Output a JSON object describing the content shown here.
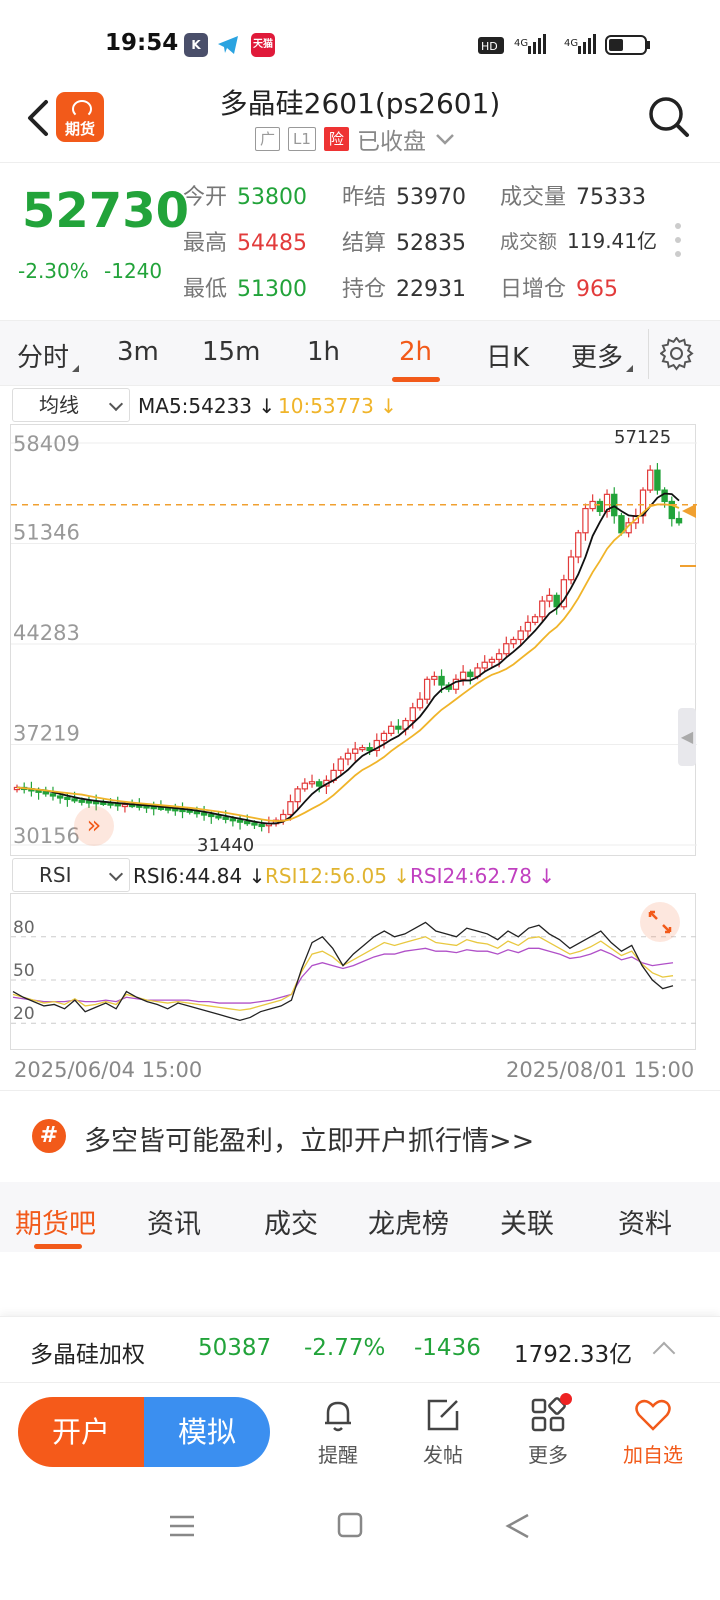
{
  "status_bar": {
    "time": "19:54",
    "app_icons": [
      "K",
      "telegram-icon",
      "天猫"
    ],
    "net": [
      "HD",
      "4G",
      "4G"
    ]
  },
  "header": {
    "title": "多晶硅2601(ps2601)",
    "tags": [
      "广",
      "L1",
      "险"
    ],
    "market_status": "已收盘"
  },
  "quote": {
    "price": "52730",
    "change_pct": "-2.30%",
    "change": "-1240",
    "fields": [
      {
        "k": "今开",
        "v": "53800",
        "c": "g"
      },
      {
        "k": "昨结",
        "v": "53970",
        "c": "dk"
      },
      {
        "k": "成交量",
        "v": "75333",
        "c": "dk"
      },
      {
        "k": "最高",
        "v": "54485",
        "c": "r"
      },
      {
        "k": "结算",
        "v": "52835",
        "c": "dk"
      },
      {
        "k": "成交额",
        "v": "119.41亿",
        "c": "dk"
      },
      {
        "k": "最低",
        "v": "51300",
        "c": "g"
      },
      {
        "k": "持仓",
        "v": "22931",
        "c": "dk"
      },
      {
        "k": "日增仓",
        "v": "965",
        "c": "r"
      }
    ]
  },
  "period_tabs": [
    "分时",
    "3m",
    "15m",
    "1h",
    "2h",
    "日K",
    "更多"
  ],
  "active_period": "2h",
  "main_indicator": {
    "select": "均线",
    "ma5": "MA5:54233",
    "ma10": "10:53773"
  },
  "sub_indicator": {
    "select": "RSI",
    "rsi6": "RSI6:44.84",
    "rsi12": "RSI12:56.05",
    "rsi24": "RSI24:62.78"
  },
  "colors": {
    "up": "#e23b3b",
    "down": "#22a33a",
    "ma5": "#111111",
    "ma10": "#f0b429",
    "rsi6": "#222222",
    "rsi12": "#e8c840",
    "rsi24": "#b050c8",
    "accent": "#f25a1a"
  },
  "chart_data": {
    "type": "candlestick",
    "y_ticks": [
      "58409",
      "51346",
      "44283",
      "37219",
      "30156"
    ],
    "ylim": [
      30156,
      58409
    ],
    "high_label": "57125",
    "low_label": "31440",
    "x_start": "2025/06/04 15:00",
    "x_end": "2025/08/01 15:00",
    "close": [
      34200,
      34100,
      34000,
      33900,
      33750,
      33600,
      33500,
      33400,
      33300,
      33250,
      33200,
      33150,
      33100,
      33050,
      33000,
      33000,
      32950,
      32900,
      32850,
      32800,
      32750,
      32700,
      32650,
      32600,
      32500,
      32400,
      32300,
      32200,
      32100,
      32000,
      31900,
      31800,
      31700,
      31600,
      31550,
      31650,
      31900,
      32300,
      33200,
      34100,
      34500,
      34600,
      34300,
      34700,
      35400,
      36200,
      36600,
      36900,
      37000,
      36800,
      37500,
      38000,
      38500,
      38300,
      38900,
      39800,
      40400,
      41800,
      42000,
      41400,
      41100,
      41800,
      42300,
      42000,
      42600,
      43000,
      43200,
      43600,
      44300,
      44600,
      45200,
      45800,
      46200,
      47300,
      47700,
      46900,
      48800,
      50400,
      52100,
      53800,
      54300,
      53600,
      54800,
      53300,
      52100,
      52800,
      53300,
      55100,
      56500,
      55100,
      54300,
      53100,
      52800
    ],
    "rsi_ticks": [
      "80",
      "50",
      "20"
    ],
    "rsi6": [
      42,
      38,
      35,
      32,
      33,
      30,
      36,
      28,
      31,
      34,
      30,
      42,
      38,
      35,
      33,
      30,
      34,
      32,
      30,
      28,
      26,
      24,
      22,
      24,
      28,
      30,
      32,
      36,
      58,
      76,
      80,
      72,
      60,
      68,
      74,
      80,
      84,
      80,
      82,
      86,
      90,
      84,
      82,
      80,
      86,
      84,
      82,
      78,
      84,
      80,
      86,
      88,
      82,
      78,
      72,
      76,
      80,
      84,
      76,
      70,
      74,
      60,
      50,
      44,
      46
    ],
    "rsi12": [
      40,
      38,
      36,
      34,
      35,
      33,
      37,
      32,
      33,
      35,
      33,
      40,
      38,
      36,
      35,
      34,
      35,
      34,
      33,
      32,
      31,
      30,
      29,
      30,
      32,
      34,
      36,
      40,
      56,
      68,
      70,
      66,
      60,
      64,
      68,
      72,
      76,
      74,
      76,
      78,
      80,
      76,
      75,
      74,
      78,
      76,
      75,
      72,
      77,
      74,
      79,
      80,
      76,
      72,
      68,
      70,
      73,
      77,
      72,
      67,
      70,
      61,
      55,
      52,
      53
    ],
    "rsi24": [
      38,
      37,
      36,
      35,
      35,
      35,
      36,
      35,
      35,
      36,
      35,
      38,
      37,
      36,
      36,
      36,
      36,
      36,
      35,
      35,
      34,
      34,
      34,
      34,
      35,
      36,
      38,
      40,
      52,
      60,
      62,
      60,
      58,
      60,
      63,
      66,
      68,
      68,
      70,
      71,
      72,
      70,
      70,
      69,
      71,
      70,
      70,
      68,
      71,
      69,
      72,
      72,
      70,
      68,
      65,
      66,
      68,
      71,
      68,
      64,
      66,
      62,
      60,
      61,
      62
    ]
  },
  "promo": {
    "icon": "#",
    "text": "多空皆可能盈利，立即开户抓行情>>"
  },
  "content_tabs": [
    "期货吧",
    "资讯",
    "成交",
    "龙虎榜",
    "关联",
    "资料"
  ],
  "index_bar": {
    "name": "多晶硅加权",
    "price": "50387",
    "pct": "-2.77%",
    "chg": "-1436",
    "amount": "1792.33亿"
  },
  "bottom": {
    "open_account": "开户",
    "simulate": "模拟",
    "nav": [
      "提醒",
      "发帖",
      "更多",
      "加自选"
    ]
  }
}
